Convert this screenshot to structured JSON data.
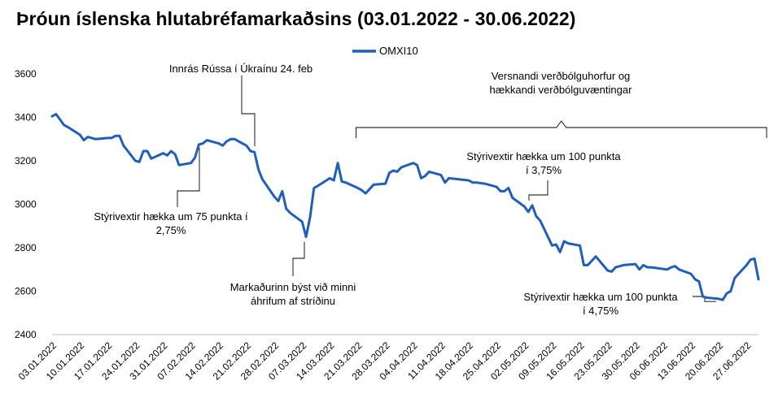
{
  "chart_data": {
    "type": "line",
    "title": "Þróun íslenska hlutabréfamarkaðsins (03.01.2022 - 30.06.2022)",
    "xlabel": "",
    "ylabel": "",
    "ylim": [
      2400,
      3600
    ],
    "yticks": [
      "2400",
      "2600",
      "2800",
      "3000",
      "3200",
      "3400",
      "3600"
    ],
    "grid": false,
    "legend_position": "top-center",
    "series": [
      {
        "name": "OMXI10",
        "color": "#1f5fb8",
        "points": [
          [
            "2022-01-03",
            3405
          ],
          [
            "2022-01-04",
            3415
          ],
          [
            "2022-01-05",
            3390
          ],
          [
            "2022-01-06",
            3365
          ],
          [
            "2022-01-07",
            3355
          ],
          [
            "2022-01-10",
            3320
          ],
          [
            "2022-01-11",
            3295
          ],
          [
            "2022-01-12",
            3310
          ],
          [
            "2022-01-13",
            3305
          ],
          [
            "2022-01-14",
            3300
          ],
          [
            "2022-01-17",
            3305
          ],
          [
            "2022-01-18",
            3305
          ],
          [
            "2022-01-19",
            3315
          ],
          [
            "2022-01-20",
            3315
          ],
          [
            "2022-01-21",
            3270
          ],
          [
            "2022-01-24",
            3200
          ],
          [
            "2022-01-25",
            3195
          ],
          [
            "2022-01-26",
            3245
          ],
          [
            "2022-01-27",
            3245
          ],
          [
            "2022-01-28",
            3210
          ],
          [
            "2022-01-31",
            3235
          ],
          [
            "2022-02-01",
            3225
          ],
          [
            "2022-02-02",
            3245
          ],
          [
            "2022-02-03",
            3230
          ],
          [
            "2022-02-04",
            3180
          ],
          [
            "2022-02-07",
            3190
          ],
          [
            "2022-02-08",
            3215
          ],
          [
            "2022-02-09",
            3275
          ],
          [
            "2022-02-10",
            3280
          ],
          [
            "2022-02-11",
            3295
          ],
          [
            "2022-02-14",
            3280
          ],
          [
            "2022-02-15",
            3270
          ],
          [
            "2022-02-16",
            3290
          ],
          [
            "2022-02-17",
            3300
          ],
          [
            "2022-02-18",
            3300
          ],
          [
            "2022-02-21",
            3270
          ],
          [
            "2022-02-22",
            3245
          ],
          [
            "2022-02-23",
            3240
          ],
          [
            "2022-02-24",
            3160
          ],
          [
            "2022-02-25",
            3115
          ],
          [
            "2022-02-28",
            3035
          ],
          [
            "2022-03-01",
            3015
          ],
          [
            "2022-03-02",
            3060
          ],
          [
            "2022-03-03",
            2980
          ],
          [
            "2022-03-04",
            2960
          ],
          [
            "2022-03-07",
            2920
          ],
          [
            "2022-03-08",
            2850
          ],
          [
            "2022-03-09",
            2940
          ],
          [
            "2022-03-10",
            3075
          ],
          [
            "2022-03-11",
            3085
          ],
          [
            "2022-03-14",
            3120
          ],
          [
            "2022-03-15",
            3110
          ],
          [
            "2022-03-16",
            3190
          ],
          [
            "2022-03-17",
            3105
          ],
          [
            "2022-03-18",
            3100
          ],
          [
            "2022-03-21",
            3075
          ],
          [
            "2022-03-22",
            3065
          ],
          [
            "2022-03-23",
            3050
          ],
          [
            "2022-03-24",
            3070
          ],
          [
            "2022-03-25",
            3090
          ],
          [
            "2022-03-28",
            3095
          ],
          [
            "2022-03-29",
            3145
          ],
          [
            "2022-03-30",
            3155
          ],
          [
            "2022-03-31",
            3150
          ],
          [
            "2022-04-01",
            3170
          ],
          [
            "2022-04-04",
            3190
          ],
          [
            "2022-04-05",
            3180
          ],
          [
            "2022-04-06",
            3120
          ],
          [
            "2022-04-07",
            3130
          ],
          [
            "2022-04-08",
            3150
          ],
          [
            "2022-04-11",
            3135
          ],
          [
            "2022-04-12",
            3100
          ],
          [
            "2022-04-13",
            3120
          ],
          [
            "2022-04-18",
            3110
          ],
          [
            "2022-04-19",
            3100
          ],
          [
            "2022-04-20",
            3100
          ],
          [
            "2022-04-22",
            3095
          ],
          [
            "2022-04-25",
            3080
          ],
          [
            "2022-04-26",
            3060
          ],
          [
            "2022-04-27",
            3060
          ],
          [
            "2022-04-28",
            3075
          ],
          [
            "2022-04-29",
            3030
          ],
          [
            "2022-05-02",
            2990
          ],
          [
            "2022-05-03",
            2965
          ],
          [
            "2022-05-04",
            2995
          ],
          [
            "2022-05-05",
            2945
          ],
          [
            "2022-05-06",
            2925
          ],
          [
            "2022-05-09",
            2810
          ],
          [
            "2022-05-10",
            2815
          ],
          [
            "2022-05-11",
            2780
          ],
          [
            "2022-05-12",
            2830
          ],
          [
            "2022-05-13",
            2820
          ],
          [
            "2022-05-16",
            2810
          ],
          [
            "2022-05-17",
            2720
          ],
          [
            "2022-05-18",
            2720
          ],
          [
            "2022-05-19",
            2740
          ],
          [
            "2022-05-20",
            2760
          ],
          [
            "2022-05-23",
            2695
          ],
          [
            "2022-05-24",
            2690
          ],
          [
            "2022-05-25",
            2710
          ],
          [
            "2022-05-27",
            2720
          ],
          [
            "2022-05-30",
            2725
          ],
          [
            "2022-05-31",
            2700
          ],
          [
            "2022-06-01",
            2720
          ],
          [
            "2022-06-02",
            2710
          ],
          [
            "2022-06-03",
            2710
          ],
          [
            "2022-06-07",
            2700
          ],
          [
            "2022-06-08",
            2710
          ],
          [
            "2022-06-09",
            2715
          ],
          [
            "2022-06-10",
            2700
          ],
          [
            "2022-06-13",
            2680
          ],
          [
            "2022-06-14",
            2655
          ],
          [
            "2022-06-15",
            2645
          ],
          [
            "2022-06-16",
            2575
          ],
          [
            "2022-06-17",
            2570
          ],
          [
            "2022-06-20",
            2565
          ],
          [
            "2022-06-21",
            2560
          ],
          [
            "2022-06-22",
            2590
          ],
          [
            "2022-06-23",
            2600
          ],
          [
            "2022-06-24",
            2660
          ],
          [
            "2022-06-27",
            2720
          ],
          [
            "2022-06-28",
            2745
          ],
          [
            "2022-06-29",
            2750
          ],
          [
            "2022-06-30",
            2655
          ]
        ]
      }
    ],
    "x_tick_labels": [
      "03.01.2022",
      "10.01.2022",
      "17.01.2022",
      "24.01.2022",
      "31.01.2022",
      "07.02.2022",
      "14.02.2022",
      "21.02.2022",
      "28.02.2022",
      "07.03.2022",
      "14.03.2022",
      "21.03.2022",
      "28.03.2022",
      "04.04.2022",
      "11.04.2022",
      "18.04.2022",
      "25.04.2022",
      "02.05.2022",
      "09.05.2022",
      "16.05.2022",
      "23.05.2022",
      "30.05.2022",
      "06.06.2022",
      "13.06.2022",
      "20.06.2022",
      "27.06.2022"
    ],
    "x_tick_dates": [
      "2022-01-03",
      "2022-01-10",
      "2022-01-17",
      "2022-01-24",
      "2022-01-31",
      "2022-02-07",
      "2022-02-14",
      "2022-02-21",
      "2022-02-28",
      "2022-03-07",
      "2022-03-14",
      "2022-03-21",
      "2022-03-28",
      "2022-04-04",
      "2022-04-11",
      "2022-04-18",
      "2022-04-25",
      "2022-05-02",
      "2022-05-09",
      "2022-05-16",
      "2022-05-23",
      "2022-05-30",
      "2022-06-06",
      "2022-06-13",
      "2022-06-20",
      "2022-06-27"
    ],
    "annotations": [
      {
        "lines": [
          "Innrás Rússa í Úkraínu 24. feb"
        ],
        "date": "2022-02-24",
        "value": 3245
      },
      {
        "lines": [
          "Stýrivextir hækka um 75 punkta  í",
          "2,75%"
        ],
        "date": "2022-02-09",
        "value": 3275
      },
      {
        "lines": [
          "Markaðurinn býst við minni",
          "áhrifum af stríðinu"
        ],
        "date": "2022-03-08",
        "value": 2850
      },
      {
        "lines": [
          "Stýrivextir hækka um 100 punkta",
          "í 3,75%"
        ],
        "date": "2022-05-04",
        "value": 2995
      },
      {
        "lines": [
          "Stýrivextir hækka um 100 punkta",
          "í 4,75%"
        ],
        "date": "2022-06-22",
        "value": 2590
      },
      {
        "lines": [
          "Versnandi verðbólguhorfur og",
          "hækkandi verðbólguvæntingar"
        ],
        "range": [
          "2022-03-21",
          "2022-06-30"
        ]
      }
    ]
  }
}
